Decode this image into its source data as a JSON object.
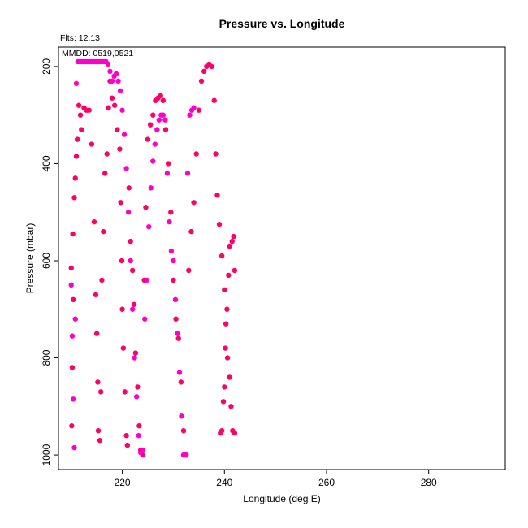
{
  "chart_data": {
    "type": "scatter",
    "title": "Pressure vs. Longitude",
    "xlabel": "Longitude (deg E)",
    "ylabel": "Pressure (mbar)",
    "annotations": [
      "Flts: 12,13",
      "MMDD: 0519,0521"
    ],
    "xlim": [
      207.5,
      295
    ],
    "ylim": [
      1030,
      160
    ],
    "y_reversed": true,
    "xticks": [
      220,
      240,
      260,
      280
    ],
    "yticks": [
      200,
      400,
      600,
      800,
      1000
    ],
    "colors": [
      "#ff0066",
      "#ff00cc"
    ],
    "series": [
      {
        "color": "#ff0066",
        "x": [
          210.0,
          210.1,
          210.2,
          210.3,
          210.4,
          210.6,
          210.8,
          211.0,
          211.2,
          211.5,
          211.8,
          212.0,
          212.5,
          213.0,
          213.5,
          214.0,
          214.5,
          214.8,
          215.0,
          215.2,
          215.3,
          215.6,
          215.8,
          216.0,
          216.3,
          216.6,
          217.0,
          217.3,
          217.6,
          218.0,
          218.5,
          219.0,
          219.5,
          219.7,
          219.9,
          220.0,
          220.2,
          220.5,
          220.8,
          221.0,
          221.3,
          221.6,
          222.0,
          222.3,
          222.6,
          223.0,
          223.3,
          223.6,
          224.0,
          224.3,
          224.6,
          225.0,
          225.5,
          226.0,
          226.5,
          227.0,
          227.5,
          228.0,
          228.5,
          229.0,
          229.5,
          230.0,
          230.5,
          231.0,
          231.5,
          232.0,
          232.5,
          233.0,
          233.5,
          234.0,
          234.5,
          235.0,
          235.5,
          236.0,
          236.5,
          237.0,
          237.5,
          238.0,
          238.3,
          238.6,
          239.0,
          239.5,
          240.0,
          240.3,
          240.6,
          241.0,
          241.3,
          241.6,
          242.0,
          242.0,
          241.8,
          241.5,
          241.0,
          240.8,
          240.5,
          240.2,
          240.0,
          239.8,
          239.5,
          239.2
        ],
        "y": [
          615,
          940,
          820,
          545,
          680,
          470,
          430,
          385,
          350,
          280,
          300,
          330,
          285,
          290,
          290,
          360,
          520,
          670,
          750,
          850,
          950,
          970,
          870,
          640,
          540,
          420,
          380,
          285,
          230,
          265,
          280,
          330,
          370,
          480,
          600,
          700,
          780,
          870,
          960,
          980,
          450,
          560,
          620,
          690,
          790,
          860,
          940,
          990,
          1000,
          640,
          490,
          350,
          320,
          300,
          270,
          265,
          260,
          270,
          330,
          400,
          500,
          640,
          720,
          760,
          850,
          950,
          1000,
          620,
          540,
          480,
          380,
          290,
          230,
          210,
          200,
          195,
          200,
          270,
          380,
          465,
          525,
          590,
          660,
          730,
          800,
          840,
          900,
          950,
          955,
          620,
          550,
          560,
          570,
          630,
          700,
          780,
          860,
          890,
          950,
          955
        ]
      },
      {
        "color": "#ff00cc",
        "x": [
          210.0,
          210.2,
          210.4,
          210.6,
          210.8,
          211.0,
          211.3,
          211.6,
          212.0,
          212.4,
          212.8,
          213.2,
          213.6,
          214.0,
          214.4,
          214.8,
          215.2,
          215.6,
          216.0,
          216.4,
          216.8,
          217.2,
          217.6,
          218.0,
          218.4,
          218.8,
          219.2,
          219.6,
          220.0,
          220.4,
          220.8,
          221.2,
          221.6,
          222.0,
          222.4,
          222.8,
          223.2,
          223.6,
          224.0,
          224.4,
          224.8,
          225.2,
          225.6,
          226.0,
          226.4,
          226.8,
          227.2,
          227.6,
          228.0,
          228.4,
          228.8,
          229.2,
          229.6,
          230.0,
          230.4,
          230.8,
          231.2,
          231.6,
          232.0,
          232.4,
          232.8,
          233.2,
          233.6,
          234.0
        ],
        "y": [
          650,
          755,
          885,
          985,
          720,
          235,
          190,
          190,
          190,
          190,
          190,
          190,
          190,
          190,
          190,
          190,
          190,
          190,
          190,
          190,
          190,
          195,
          210,
          230,
          220,
          215,
          230,
          250,
          290,
          340,
          410,
          500,
          600,
          700,
          800,
          880,
          960,
          995,
          990,
          720,
          640,
          530,
          450,
          395,
          360,
          330,
          310,
          300,
          300,
          310,
          420,
          520,
          580,
          600,
          680,
          750,
          830,
          920,
          1000,
          1000,
          420,
          300,
          290,
          285
        ]
      }
    ]
  }
}
